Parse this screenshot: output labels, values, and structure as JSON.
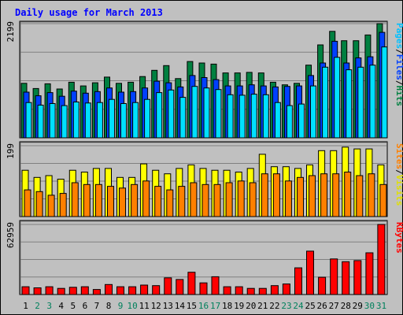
{
  "chart_data": [
    {
      "type": "bar",
      "title": "Daily usage for March 2013",
      "ymax_label": "2199",
      "ylim": [
        0,
        2199
      ],
      "series": [
        {
          "name": "Hits",
          "color": "#008040",
          "values": [
            1050,
            950,
            1040,
            940,
            1070,
            1000,
            1060,
            1170,
            1050,
            1070,
            1180,
            1300,
            1390,
            1140,
            1470,
            1440,
            1420,
            1250,
            1250,
            1260,
            1250,
            1070,
            1020,
            1050,
            1400,
            1790,
            2050,
            1870,
            1870,
            1980,
            2199
          ]
        },
        {
          "name": "Files",
          "color": "#0040ff",
          "values": [
            880,
            810,
            870,
            800,
            900,
            860,
            890,
            960,
            880,
            890,
            960,
            1090,
            1060,
            980,
            1200,
            1160,
            1120,
            1000,
            1000,
            1020,
            1000,
            980,
            990,
            1000,
            1200,
            1440,
            1860,
            1440,
            1540,
            1560,
            2030
          ]
        },
        {
          "name": "Pages",
          "color": "#00e0ff",
          "values": [
            680,
            630,
            660,
            620,
            690,
            670,
            680,
            740,
            660,
            680,
            740,
            870,
            920,
            780,
            990,
            960,
            930,
            830,
            820,
            840,
            830,
            680,
            620,
            650,
            1000,
            1360,
            1550,
            1310,
            1360,
            1400,
            1750
          ]
        }
      ],
      "side_labels": [
        "Pages",
        "/",
        "Files",
        "/",
        "Hits"
      ]
    },
    {
      "type": "bar",
      "ymax_label": "199",
      "ylim": [
        0,
        199
      ],
      "series": [
        {
          "name": "Visits",
          "color": "#ffff00",
          "values": [
            130,
            110,
            115,
            105,
            130,
            125,
            135,
            135,
            110,
            110,
            148,
            130,
            120,
            135,
            145,
            135,
            130,
            130,
            125,
            135,
            175,
            140,
            140,
            135,
            145,
            185,
            185,
            195,
            190,
            190,
            145
          ]
        },
        {
          "name": "Sites",
          "color": "#ff8000",
          "values": [
            75,
            70,
            60,
            65,
            95,
            90,
            90,
            85,
            80,
            90,
            100,
            85,
            75,
            85,
            95,
            90,
            90,
            95,
            100,
            95,
            120,
            120,
            100,
            110,
            115,
            120,
            120,
            125,
            115,
            120,
            90
          ]
        }
      ],
      "side_labels": [
        "Sites",
        "/",
        "Visits"
      ]
    },
    {
      "type": "bar",
      "ymax_label": "62959",
      "ylim": [
        0,
        62959
      ],
      "series": [
        {
          "name": "KBytes",
          "color": "#ff0000",
          "values": [
            7000,
            6000,
            7000,
            5500,
            6500,
            7000,
            4500,
            9000,
            7000,
            7000,
            8500,
            8000,
            15000,
            13500,
            20000,
            10500,
            16000,
            7000,
            7000,
            5500,
            5500,
            8000,
            9500,
            24000,
            39000,
            15500,
            32000,
            29500,
            30500,
            37500,
            62959
          ]
        }
      ],
      "side_labels": [
        "KBytes"
      ]
    }
  ],
  "days": [
    "1",
    "2",
    "3",
    "4",
    "5",
    "6",
    "7",
    "8",
    "9",
    "10",
    "11",
    "12",
    "13",
    "14",
    "15",
    "16",
    "17",
    "18",
    "19",
    "20",
    "21",
    "22",
    "23",
    "24",
    "25",
    "26",
    "27",
    "28",
    "29",
    "30",
    "31"
  ],
  "weekend_days": [
    "2",
    "3",
    "9",
    "10",
    "16",
    "17",
    "23",
    "24",
    "30",
    "31"
  ],
  "colors": {
    "title": "#0000ff",
    "weekday": "#000000",
    "weekend": "#00805c",
    "panel_bg": "#c0c0c0",
    "gridline": "#808080"
  }
}
